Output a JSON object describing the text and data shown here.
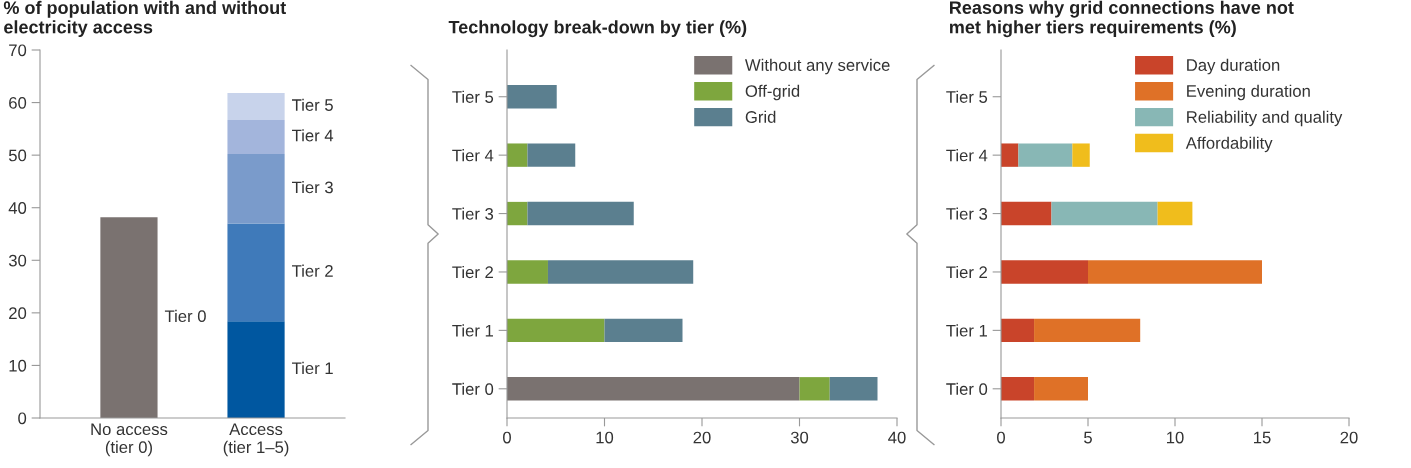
{
  "chart_data": [
    {
      "type": "bar",
      "stacked": true,
      "title": "% of population with and without\nelectricity access",
      "categories": [
        "No access\n(tier 0)",
        "Access\n(tier 1–5)"
      ],
      "ylim": [
        0,
        70
      ],
      "yticks": [
        0,
        10,
        20,
        30,
        40,
        50,
        60,
        70
      ],
      "legend": false,
      "grid": false,
      "series": [
        {
          "name": "Tier 0",
          "color": "#7a7270",
          "values": [
            38.2,
            null
          ]
        },
        {
          "name": "Tier 1",
          "color": "#0057a0",
          "values": [
            null,
            18.4
          ]
        },
        {
          "name": "Tier 2",
          "color": "#3f7aba",
          "values": [
            null,
            18.6
          ]
        },
        {
          "name": "Tier 3",
          "color": "#7a9bcb",
          "values": [
            null,
            13.2
          ]
        },
        {
          "name": "Tier 4",
          "color": "#a3b5dc",
          "values": [
            null,
            6.5
          ]
        },
        {
          "name": "Tier 5",
          "color": "#c8d3eb",
          "values": [
            null,
            5.1
          ]
        }
      ]
    },
    {
      "type": "bar",
      "stacked": true,
      "orientation": "horizontal",
      "title": "Technology break-down by tier (%)",
      "categories": [
        "Tier 5",
        "Tier 4",
        "Tier 3",
        "Tier 2",
        "Tier 1",
        "Tier 0"
      ],
      "xlim": [
        0,
        40
      ],
      "xticks": [
        0,
        10,
        20,
        30,
        40
      ],
      "legend": "top right",
      "grid": false,
      "series": [
        {
          "name": "Without any service",
          "color": "#7a7270",
          "values": [
            0,
            0,
            0,
            0,
            0,
            30
          ]
        },
        {
          "name": "Off-grid",
          "color": "#7ea63e",
          "values": [
            0,
            2.1,
            2.1,
            4.2,
            10,
            3.1
          ]
        },
        {
          "name": "Grid",
          "color": "#5b7f8f",
          "values": [
            5.1,
            4.9,
            10.9,
            14.9,
            8,
            4.9
          ]
        }
      ]
    },
    {
      "type": "bar",
      "stacked": true,
      "orientation": "horizontal",
      "title": "Reasons why grid connections have not\nmet higher tiers requirements (%)",
      "categories": [
        "Tier 5",
        "Tier 4",
        "Tier 3",
        "Tier 2",
        "Tier 1",
        "Tier 0"
      ],
      "xlim": [
        0,
        20
      ],
      "xticks": [
        0,
        5,
        10,
        15,
        20
      ],
      "legend": "top right",
      "grid": false,
      "series": [
        {
          "name": "Day duration",
          "color": "#c9442a",
          "values": [
            0,
            1,
            2.9,
            5,
            1.9,
            1.9
          ]
        },
        {
          "name": "Evening duration",
          "color": "#df7127",
          "values": [
            0,
            0,
            0,
            10,
            6.1,
            3.1
          ]
        },
        {
          "name": "Reliability and quality",
          "color": "#88b7b5",
          "values": [
            0,
            3.1,
            6.1,
            0,
            0,
            0
          ]
        },
        {
          "name": "Affordability",
          "color": "#f0bd1c",
          "values": [
            0,
            1,
            2,
            0,
            0,
            0
          ]
        }
      ]
    }
  ]
}
